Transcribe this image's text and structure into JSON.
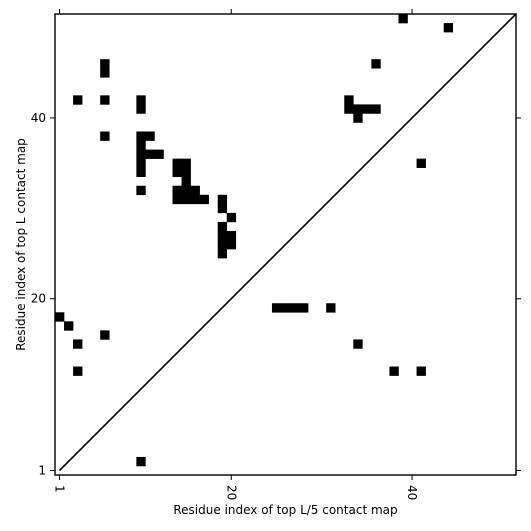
{
  "chart_data": {
    "type": "heatmap",
    "xlabel": "Residue index of top L/5 contact map",
    "ylabel": "Residue index of top L contact map",
    "x_ticks": [
      "1",
      "20",
      "40"
    ],
    "y_ticks": [
      "1",
      "20",
      "40"
    ],
    "x_tick_values": [
      1,
      20,
      40
    ],
    "y_tick_values": [
      1,
      20,
      40
    ],
    "xlim": [
      0.5,
      51.5
    ],
    "ylim": [
      0.5,
      51.5
    ],
    "diagonal": true,
    "cell_color": "#000000",
    "background": "#ffffff",
    "cells_upper_left": [
      [
        3,
        42
      ],
      [
        6,
        42
      ],
      [
        6,
        45
      ],
      [
        6,
        46
      ],
      [
        6,
        38
      ],
      [
        10,
        41
      ],
      [
        10,
        42
      ],
      [
        10,
        38
      ],
      [
        11,
        38
      ],
      [
        10,
        37
      ],
      [
        10,
        36
      ],
      [
        11,
        36
      ],
      [
        12,
        36
      ],
      [
        10,
        35
      ],
      [
        10,
        34
      ],
      [
        10,
        32
      ],
      [
        14,
        35
      ],
      [
        15,
        35
      ],
      [
        14,
        34
      ],
      [
        15,
        34
      ],
      [
        15,
        33
      ],
      [
        14,
        32
      ],
      [
        15,
        32
      ],
      [
        16,
        32
      ],
      [
        14,
        31
      ],
      [
        15,
        31
      ],
      [
        16,
        31
      ],
      [
        17,
        31
      ],
      [
        19,
        31
      ],
      [
        19,
        30
      ],
      [
        20,
        29
      ],
      [
        19,
        28
      ],
      [
        19,
        27
      ],
      [
        20,
        27
      ],
      [
        19,
        26
      ],
      [
        20,
        26
      ],
      [
        19,
        25
      ],
      [
        33,
        42
      ],
      [
        33,
        41
      ],
      [
        34,
        41
      ],
      [
        35,
        41
      ],
      [
        36,
        41
      ],
      [
        34,
        40
      ],
      [
        36,
        46
      ],
      [
        39,
        51
      ],
      [
        44,
        50
      ],
      [
        41,
        35
      ]
    ],
    "cells_lower_right": [
      [
        1,
        18
      ],
      [
        2,
        17
      ],
      [
        3,
        15
      ],
      [
        6,
        16
      ],
      [
        3,
        12
      ],
      [
        10,
        2
      ],
      [
        25,
        19
      ],
      [
        26,
        19
      ],
      [
        27,
        19
      ],
      [
        28,
        19
      ],
      [
        31,
        19
      ],
      [
        34,
        15
      ],
      [
        38,
        12
      ],
      [
        41,
        12
      ]
    ]
  }
}
